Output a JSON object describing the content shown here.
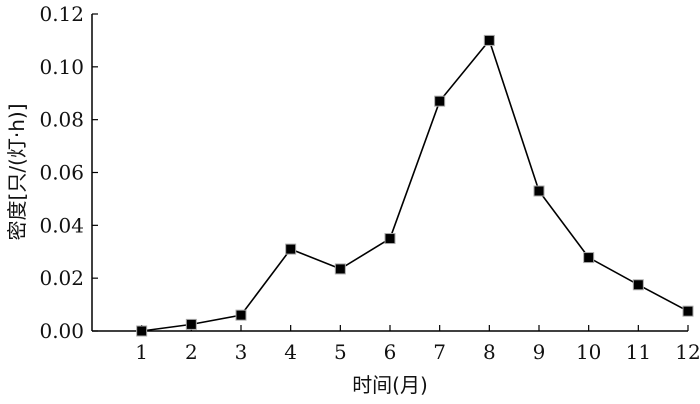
{
  "chart_data": {
    "type": "line",
    "xlabel": "时间(月)",
    "ylabel": "密度[只/(灯·h)]",
    "x": [
      1,
      2,
      3,
      4,
      5,
      6,
      7,
      8,
      9,
      10,
      11,
      12
    ],
    "xticks": [
      "1",
      "2",
      "3",
      "4",
      "5",
      "6",
      "7",
      "8",
      "9",
      "10",
      "11",
      "12"
    ],
    "xlim": [
      0,
      12
    ],
    "ylim": [
      0,
      0.12
    ],
    "yticks": [
      "0.00",
      "0.02",
      "0.04",
      "0.06",
      "0.08",
      "0.10",
      "0.12"
    ],
    "series": [
      {
        "values": [
          0.0,
          0.0025,
          0.006,
          0.031,
          0.0235,
          0.035,
          0.087,
          0.11,
          0.053,
          0.0278,
          0.0175,
          0.0075
        ],
        "marker": "square",
        "line_color": "#000000",
        "marker_color": "#000000"
      }
    ],
    "grid": false
  }
}
